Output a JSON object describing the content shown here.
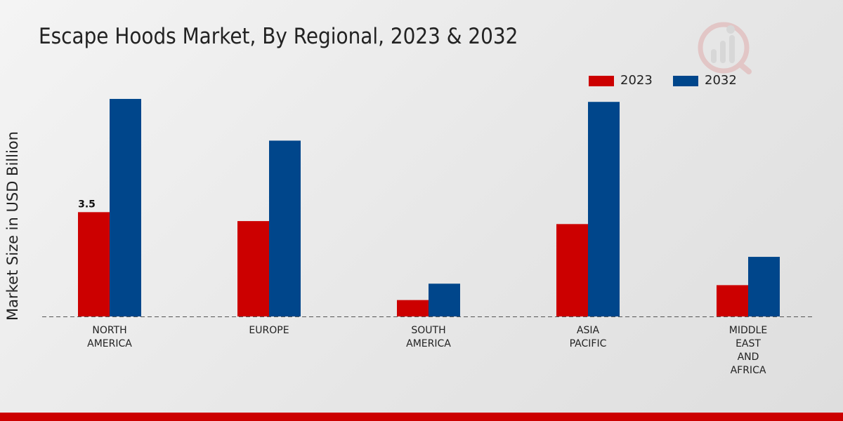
{
  "header": {
    "title": "Escape Hoods Market, By Regional, 2023 & 2032"
  },
  "chart_data": {
    "type": "bar",
    "title": "Escape Hoods Market, By Regional, 2023 & 2032",
    "xlabel": "",
    "ylabel": "Market Size in USD Billion",
    "categories": [
      [
        "NORTH",
        "AMERICA"
      ],
      [
        "EUROPE"
      ],
      [
        "SOUTH",
        "AMERICA"
      ],
      [
        "ASIA",
        "PACIFIC"
      ],
      [
        "MIDDLE",
        "EAST",
        "AND",
        "AFRICA"
      ]
    ],
    "series": [
      {
        "name": "2023",
        "color": "#cc0000",
        "values": [
          3.5,
          3.2,
          0.55,
          3.1,
          1.05
        ]
      },
      {
        "name": "2032",
        "color": "#00468b",
        "values": [
          7.3,
          5.9,
          1.1,
          7.2,
          2.0
        ]
      }
    ],
    "data_labels": [
      {
        "series": 0,
        "index": 0,
        "text": "3.5"
      }
    ],
    "ylim": [
      0,
      8.5
    ],
    "grid": false,
    "legend_position": "top-right"
  }
}
